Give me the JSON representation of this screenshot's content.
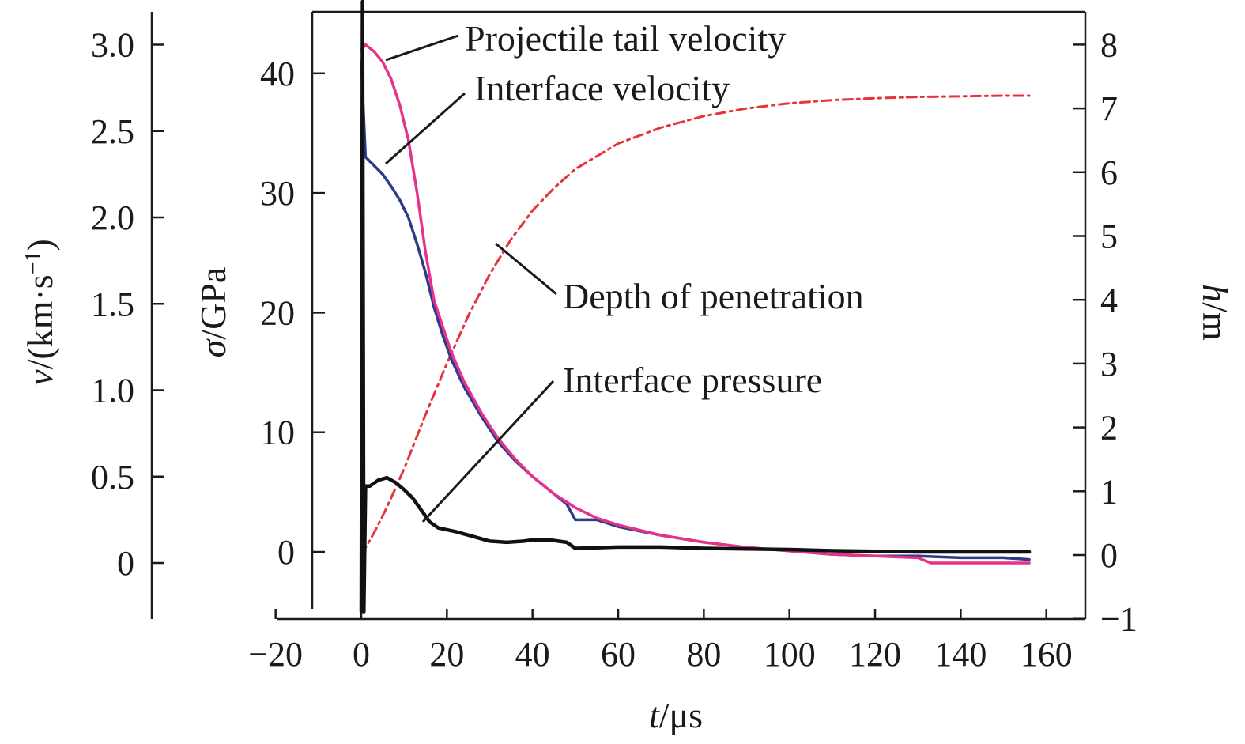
{
  "chart_data": {
    "type": "line",
    "title": "",
    "x_axis": {
      "label_var": "t",
      "label_unit": "/μs",
      "range": [
        -20,
        160
      ],
      "ticks": [
        -20,
        0,
        20,
        40,
        60,
        80,
        100,
        120,
        140,
        160
      ],
      "tick_labels": [
        "−20",
        "0",
        "20",
        "40",
        "60",
        "80",
        "100",
        "120",
        "140",
        "160"
      ]
    },
    "y_axis_left_outer": {
      "label_var": "v",
      "label_unit": "/(km·s",
      "label_sup": "−1",
      "label_close": ")",
      "range": [
        -0.3,
        3.2
      ],
      "ticks": [
        0,
        0.5,
        1.0,
        1.5,
        2.0,
        2.5,
        3.0
      ],
      "tick_labels": [
        "0",
        "0.5",
        "1.0",
        "1.5",
        "2.0",
        "2.5",
        "3.0"
      ]
    },
    "y_axis_left_inner": {
      "label_var": "σ",
      "label_unit": "/GPa",
      "range": [
        -5,
        45
      ],
      "ticks": [
        0,
        10,
        20,
        30,
        40
      ],
      "tick_labels": [
        "0",
        "10",
        "20",
        "30",
        "40"
      ]
    },
    "y_axis_right": {
      "label_var": "h",
      "label_unit": "/m",
      "range": [
        -1,
        8.5
      ],
      "ticks": [
        -1,
        0,
        1,
        2,
        3,
        4,
        5,
        6,
        7,
        8
      ],
      "tick_labels": [
        "−1",
        "0",
        "1",
        "2",
        "3",
        "4",
        "5",
        "6",
        "7",
        "8"
      ]
    },
    "series": [
      {
        "name": "Projectile tail velocity",
        "axis": "v",
        "color": "#e8318a",
        "style": "solid",
        "x": [
          0,
          1,
          3,
          5,
          7,
          9,
          11,
          13,
          15,
          17,
          19,
          21,
          24,
          28,
          32,
          36,
          40,
          45,
          50,
          55,
          60,
          70,
          80,
          90,
          100,
          110,
          120,
          130,
          133,
          140,
          150,
          156
        ],
        "y": [
          2.97,
          3.0,
          2.96,
          2.9,
          2.8,
          2.65,
          2.45,
          2.15,
          1.8,
          1.52,
          1.37,
          1.22,
          1.05,
          0.87,
          0.72,
          0.6,
          0.5,
          0.4,
          0.32,
          0.26,
          0.22,
          0.16,
          0.12,
          0.09,
          0.07,
          0.05,
          0.04,
          0.03,
          0.0,
          0.0,
          0.0,
          0.0
        ]
      },
      {
        "name": "Interface velocity",
        "axis": "v",
        "color": "#2e3a8c",
        "style": "solid",
        "x": [
          0,
          1,
          3,
          5,
          7,
          9,
          11,
          13,
          15,
          17,
          19,
          21,
          24,
          28,
          32,
          36,
          40,
          45,
          48,
          50,
          55,
          60,
          70,
          80,
          90,
          100,
          110,
          120,
          130,
          140,
          150,
          156
        ],
        "y": [
          2.9,
          2.35,
          2.3,
          2.25,
          2.18,
          2.1,
          2.0,
          1.85,
          1.68,
          1.48,
          1.32,
          1.18,
          1.02,
          0.85,
          0.7,
          0.59,
          0.5,
          0.4,
          0.34,
          0.25,
          0.25,
          0.21,
          0.16,
          0.12,
          0.09,
          0.07,
          0.05,
          0.04,
          0.04,
          0.03,
          0.03,
          0.02
        ]
      },
      {
        "name": "Depth of penetration",
        "axis": "h",
        "color": "#e5333a",
        "style": "dash-dot",
        "x": [
          0,
          3,
          6,
          10,
          15,
          20,
          25,
          30,
          35,
          40,
          45,
          50,
          60,
          70,
          80,
          90,
          100,
          110,
          120,
          130,
          140,
          150,
          156
        ],
        "y": [
          0.0,
          0.35,
          0.75,
          1.35,
          2.2,
          3.0,
          3.75,
          4.4,
          4.95,
          5.4,
          5.75,
          6.05,
          6.45,
          6.7,
          6.88,
          7.0,
          7.08,
          7.13,
          7.16,
          7.18,
          7.19,
          7.2,
          7.2
        ]
      },
      {
        "name": "Interface pressure",
        "axis": "σ",
        "color": "#111111",
        "style": "solid",
        "x": [
          0,
          0.3,
          0.6,
          1,
          2,
          4,
          6,
          8,
          10,
          12,
          14,
          16,
          18,
          22,
          26,
          30,
          34,
          38,
          40,
          44,
          48,
          50,
          55,
          60,
          70,
          80,
          90,
          100,
          110,
          120,
          130,
          140,
          147,
          150,
          156
        ],
        "y": [
          -5,
          46,
          -5,
          5.5,
          5.5,
          6.0,
          6.2,
          5.8,
          5.2,
          4.5,
          3.5,
          2.5,
          2.0,
          1.7,
          1.3,
          0.9,
          0.8,
          0.9,
          1.0,
          1.0,
          0.8,
          0.3,
          0.35,
          0.4,
          0.4,
          0.3,
          0.25,
          0.2,
          0.1,
          0.05,
          0.0,
          0.0,
          0.0,
          0.0,
          0.0
        ]
      }
    ],
    "annotations": [
      {
        "text": "Projectile tail velocity",
        "points_to": "Projectile tail velocity"
      },
      {
        "text": "Interface velocity",
        "points_to": "Interface velocity"
      },
      {
        "text": "Depth of penetration",
        "points_to": "Depth of penetration"
      },
      {
        "text": "Interface pressure",
        "points_to": "Interface pressure"
      }
    ],
    "grid": false,
    "legend": "none"
  }
}
